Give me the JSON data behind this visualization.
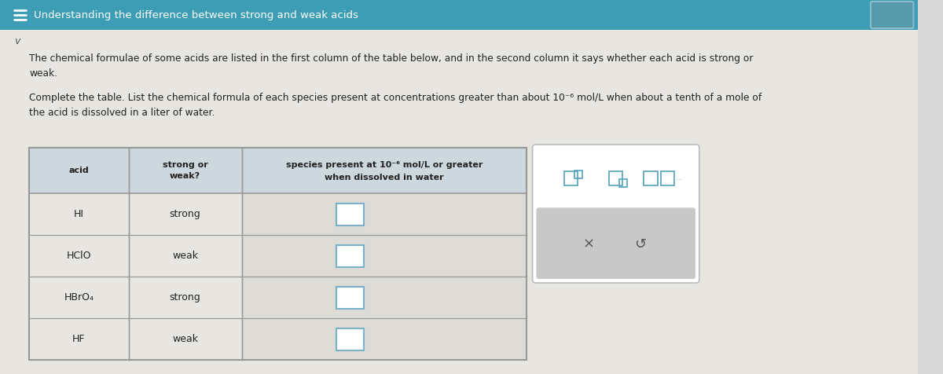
{
  "title": "Understanding the difference between strong and weak acids",
  "title_bg": "#3d9db5",
  "title_color": "#ffffff",
  "body_bg": "#d8d8d8",
  "content_bg": "#e8e6e0",
  "para1": "The chemical formulae of some acids are listed in the first column of the table below, and in the second column it says whether each acid is strong or\nweak.",
  "para2": "Complete the table. List the chemical formula of each species present at concentrations greater than about 10⁻⁶ mol/L when about a tenth of a mole of\nthe acid is dissolved in a liter of water.",
  "table_rows": [
    [
      "HI",
      "strong"
    ],
    [
      "HClO",
      "weak"
    ],
    [
      "HBrO₄",
      "strong"
    ],
    [
      "HF",
      "weak"
    ]
  ],
  "header_bg": "#cdd8de",
  "row_bg_light": "#e8e6e0",
  "border_color": "#999999",
  "text_color": "#222222",
  "input_box_color": "#7ab0c8",
  "panel_bg": "#ffffff",
  "panel_border": "#bbbbbb",
  "panel_bottom_bg": "#c8c8c8",
  "button_color": "#555555",
  "icon_color": "#5fa8c0"
}
